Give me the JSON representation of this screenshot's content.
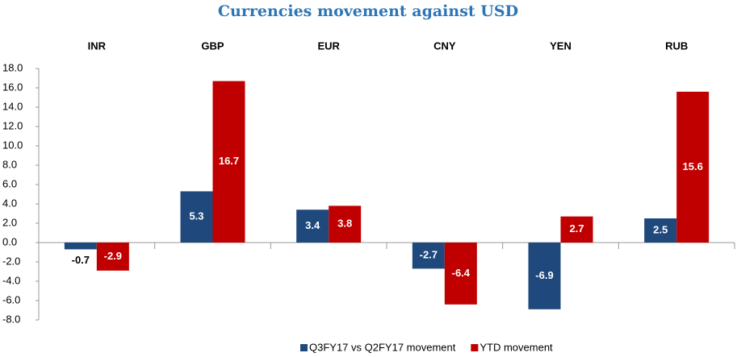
{
  "chart_data": {
    "type": "bar",
    "title": "Currencies movement against USD",
    "categories": [
      "INR",
      "GBP",
      "EUR",
      "CNY",
      "YEN",
      "RUB"
    ],
    "series": [
      {
        "name": "Q3FY17 vs Q2FY17 movement",
        "color": "#1f497d",
        "values": [
          -0.7,
          5.3,
          3.4,
          -2.7,
          -6.9,
          2.5
        ]
      },
      {
        "name": "YTD movement",
        "color": "#c00000",
        "values": [
          -2.9,
          16.7,
          3.8,
          -6.4,
          2.7,
          15.6
        ]
      }
    ],
    "ylim": [
      -8,
      18
    ],
    "yticks": [
      {
        "value": -8,
        "label": "-8.0"
      },
      {
        "value": -6,
        "label": "-6.0"
      },
      {
        "value": -4,
        "label": "-4.0"
      },
      {
        "value": -2,
        "label": "-2.0"
      },
      {
        "value": 0,
        "label": "0.0"
      },
      {
        "value": 2,
        "label": "2.0"
      },
      {
        "value": 4,
        "label": "4.0"
      },
      {
        "value": 6,
        "label": "6.0"
      },
      {
        "value": 8,
        "label": "8.0"
      },
      {
        "value": 10,
        "label": "10.0"
      },
      {
        "value": 12,
        "label": "12.0"
      },
      {
        "value": 14,
        "label": "14.0"
      },
      {
        "value": 16,
        "label": "16.0"
      },
      {
        "value": 18,
        "label": "18.0"
      }
    ],
    "grid": false,
    "legend": "bottom"
  }
}
